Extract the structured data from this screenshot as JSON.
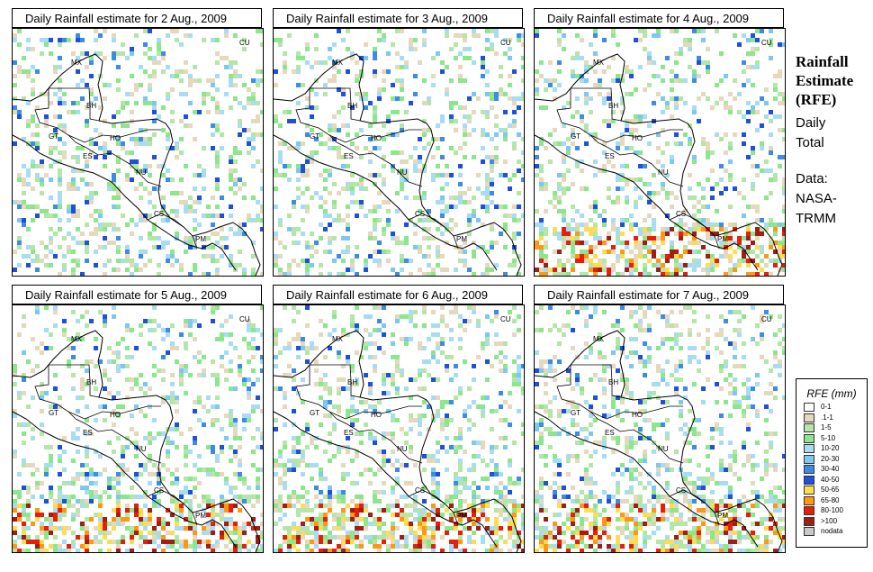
{
  "panels": [
    {
      "title": "Daily Rainfall estimate for  2 Aug., 2009",
      "seed": 2
    },
    {
      "title": "Daily Rainfall estimate for  3 Aug., 2009",
      "seed": 3
    },
    {
      "title": "Daily Rainfall estimate for  4 Aug., 2009",
      "seed": 4
    },
    {
      "title": "Daily Rainfall estimate for  5 Aug., 2009",
      "seed": 5
    },
    {
      "title": "Daily Rainfall estimate for  6 Aug., 2009",
      "seed": 6
    },
    {
      "title": "Daily Rainfall estimate for  7 Aug., 2009",
      "seed": 7
    }
  ],
  "country_labels": [
    "CU",
    "MX",
    "BH",
    "GT",
    "HO",
    "ES",
    "NU",
    "CS",
    "PM"
  ],
  "sidebar": {
    "title_lines": [
      "Rainfall",
      "Estimate",
      "(RFE)"
    ],
    "subtitle_lines": [
      "Daily",
      "Total"
    ],
    "source_lines": [
      "Data:",
      "NASA-",
      "TRMM"
    ]
  },
  "legend": {
    "title": "RFE (mm)",
    "items": [
      {
        "label": "0-1",
        "color": "#ffffff"
      },
      {
        "label": ".1-1",
        "color": "#e6d8bc"
      },
      {
        "label": "1-5",
        "color": "#b4e6a8"
      },
      {
        "label": "5-10",
        "color": "#8ce68c"
      },
      {
        "label": "10-20",
        "color": "#a8dcf0"
      },
      {
        "label": "20-30",
        "color": "#7cc8f0"
      },
      {
        "label": "30-40",
        "color": "#3c8ce6"
      },
      {
        "label": "40-50",
        "color": "#1e50dc"
      },
      {
        "label": "50-65",
        "color": "#ffdc50"
      },
      {
        "label": "65-80",
        "color": "#ff9614"
      },
      {
        "label": "80-100",
        "color": "#e61e0a"
      },
      {
        "label": ">100",
        "color": "#a01e14"
      },
      {
        "label": "nodata",
        "color": "#c8c8c8"
      }
    ]
  }
}
